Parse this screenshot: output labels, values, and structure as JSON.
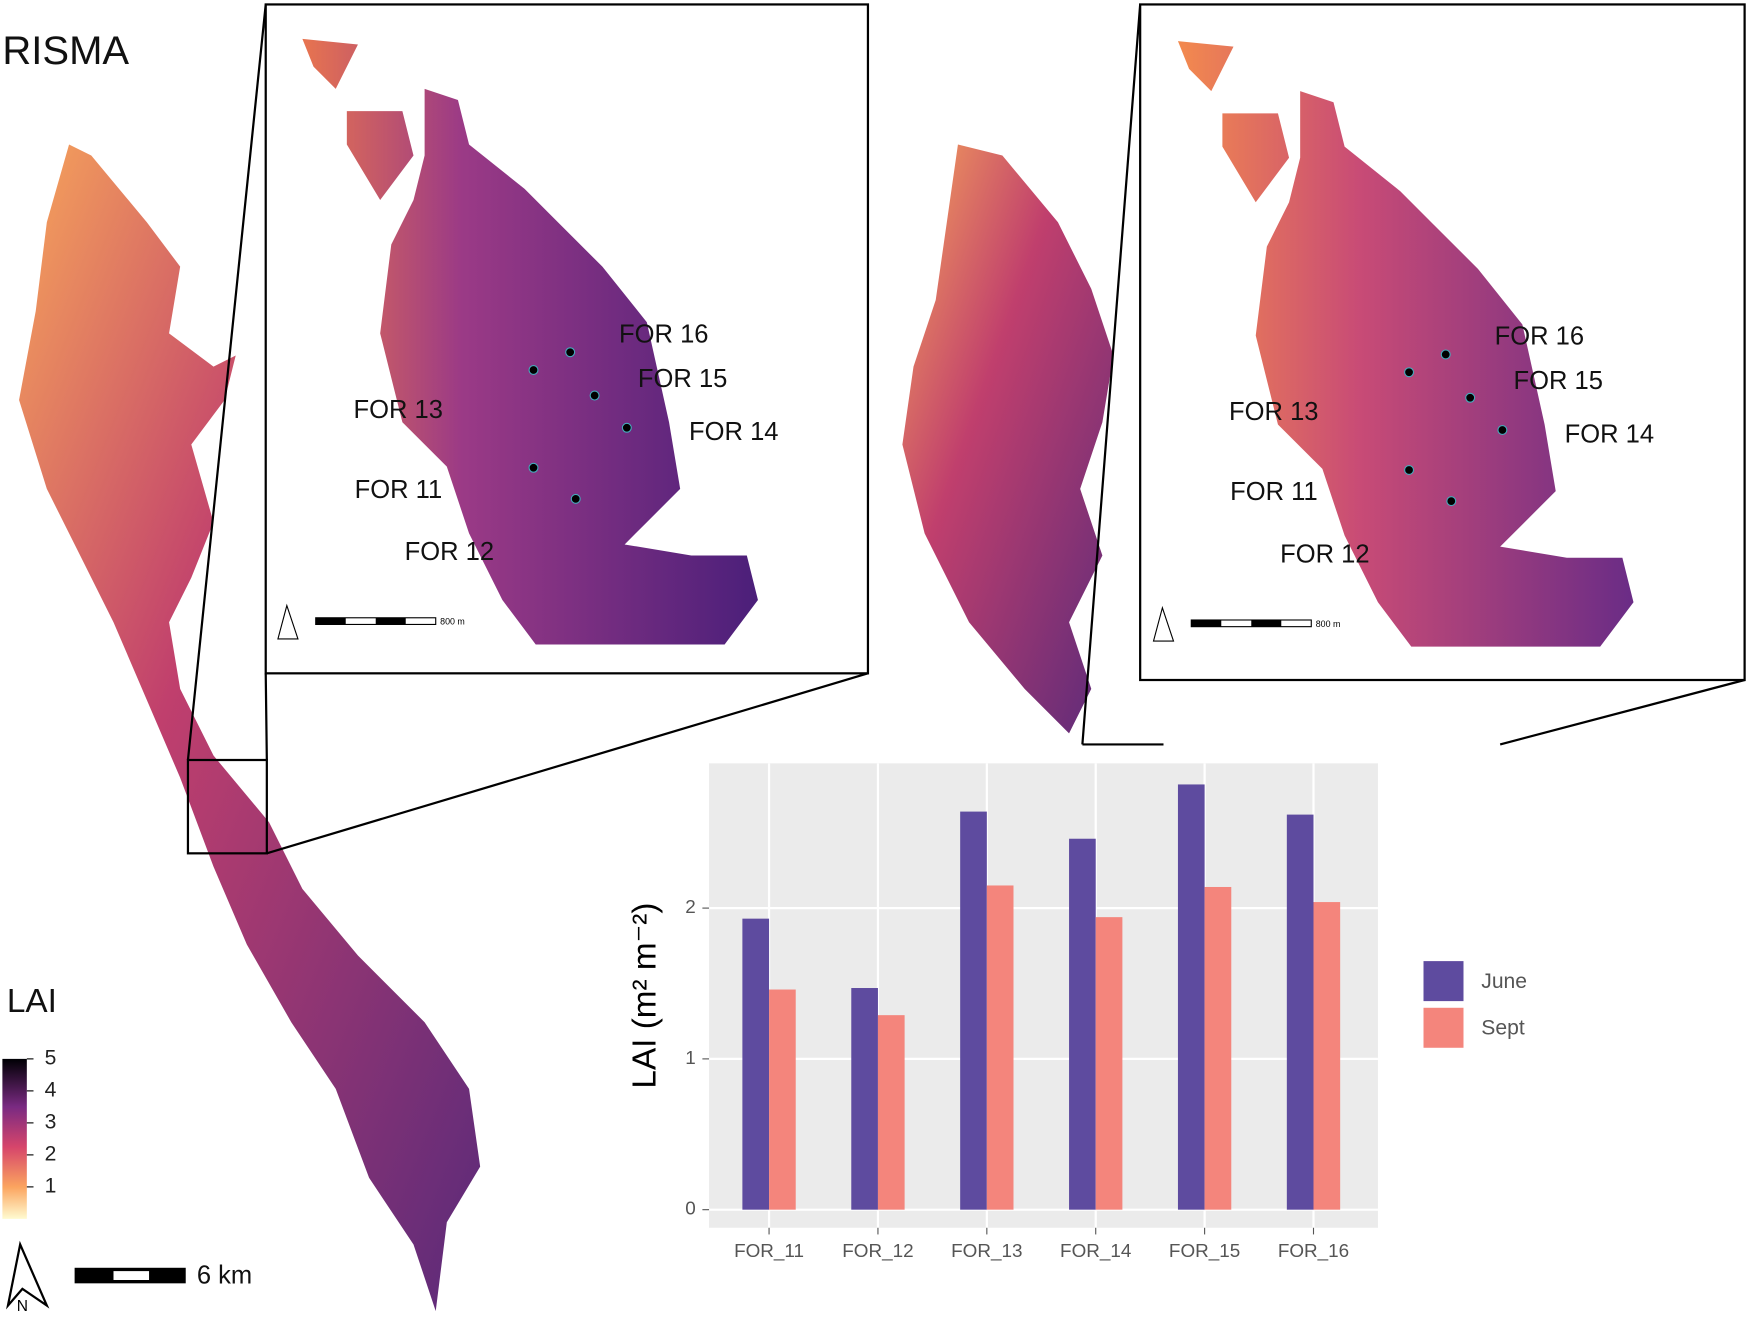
{
  "maps": {
    "title": "RISMA",
    "colorbar": {
      "title": "LAI",
      "ticks": [
        1,
        2,
        3,
        4,
        5
      ]
    },
    "scalebar": "6 km",
    "north": "N",
    "inset_scalebar": "800 m",
    "insets": [
      {
        "labels": [
          "FOR 16",
          "FOR 15",
          "FOR 14",
          "FOR 13",
          "FOR 11",
          "FOR 12"
        ]
      },
      {
        "labels": [
          "FOR 16",
          "FOR 15",
          "FOR 14",
          "FOR 13",
          "FOR 11",
          "FOR 12"
        ]
      }
    ]
  },
  "chart_data": {
    "type": "bar",
    "ylabel": "LAI (m² m⁻²)",
    "categories": [
      "FOR_11",
      "FOR_12",
      "FOR_13",
      "FOR_14",
      "FOR_15",
      "FOR_16"
    ],
    "series": [
      {
        "name": "June",
        "color": "#5e4b9f",
        "values": [
          1.93,
          1.47,
          2.64,
          2.46,
          2.82,
          2.62
        ]
      },
      {
        "name": "Sept",
        "color": "#f4857c",
        "values": [
          1.46,
          1.29,
          2.15,
          1.94,
          2.14,
          2.04
        ]
      }
    ],
    "ylim": [
      -0.12,
      2.96
    ],
    "yticks": [
      0,
      1,
      2
    ],
    "grid": true
  }
}
